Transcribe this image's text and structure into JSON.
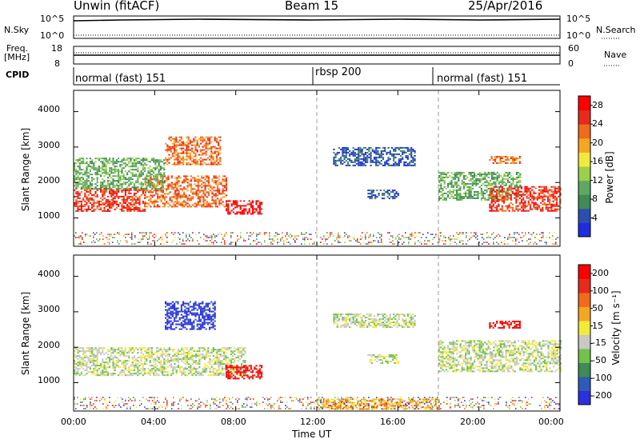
{
  "header": {
    "station": "Unwin (fitACF)",
    "beam": "Beam 15",
    "date": "25/Apr/2016"
  },
  "top_strips": {
    "nsky_label": "N.Sky",
    "nsky_ticks": [
      "10^5",
      "10^0"
    ],
    "nsearch_label": "N.Search",
    "nsearch_ticks": [
      "10^5",
      "10^0"
    ],
    "freq_label": "Freq.",
    "freq_unit": "[MHz]",
    "freq_ticks": [
      "18",
      "8"
    ],
    "nave_label": "Nave",
    "nave_ticks": [
      "60",
      "0"
    ],
    "cpid_label": "CPID"
  },
  "cpid_segments": [
    {
      "label": "normal (fast) 151",
      "start": 0,
      "end": 12
    },
    {
      "label": "rbsp 200",
      "start": 12,
      "end": 18
    },
    {
      "label": "normal (fast) 151",
      "start": 18,
      "end": 24
    }
  ],
  "colors": {
    "power_scale": [
      "#1f2de0",
      "#2b4fb0",
      "#3f8a55",
      "#5fa862",
      "#9bd04a",
      "#f2ea3a",
      "#f5a623",
      "#f26a1b",
      "#e82a1b",
      "#ff0000"
    ],
    "velocity_scale": [
      "#2a2fe0",
      "#2e5bb8",
      "#3f8a55",
      "#72c24a",
      "#c8c8c4",
      "#f2ea3a",
      "#f5a623",
      "#f26a1b",
      "#e82a1b",
      "#ff0000"
    ],
    "ground_scatter": "#c8c8c4"
  },
  "chart_data": [
    {
      "type": "heatmap",
      "name": "power",
      "ylabel": "Slant Range [km]",
      "yticks": [
        "1000",
        "2000",
        "3000",
        "4000"
      ],
      "ylim": [
        200,
        4600
      ],
      "colorbar_label": "Power [dB]",
      "colorbar_ticks": [
        "4",
        "8",
        "12",
        "16",
        "20",
        "24",
        "28"
      ],
      "blobs": [
        {
          "t0": 0.0,
          "t1": 3.5,
          "r0": 1200,
          "r1": 1850,
          "level": 8
        },
        {
          "t0": 3.5,
          "t1": 7.5,
          "r0": 1300,
          "r1": 2200,
          "level": 7
        },
        {
          "t0": 7.5,
          "t1": 9.3,
          "r0": 1100,
          "r1": 1500,
          "level": 9
        },
        {
          "t0": 4.5,
          "t1": 7.2,
          "r0": 2500,
          "r1": 3300,
          "level": 7
        },
        {
          "t0": 0.0,
          "t1": 4.5,
          "r0": 1800,
          "r1": 2700,
          "level": 3
        },
        {
          "t0": 12.8,
          "t1": 16.8,
          "r0": 2500,
          "r1": 3000,
          "level": 1
        },
        {
          "t0": 14.5,
          "t1": 16.0,
          "r0": 1550,
          "r1": 1800,
          "level": 1
        },
        {
          "t0": 18.0,
          "t1": 22.0,
          "r0": 1500,
          "r1": 2300,
          "level": 3
        },
        {
          "t0": 20.5,
          "t1": 24.0,
          "r0": 1200,
          "r1": 1900,
          "level": 8
        },
        {
          "t0": 20.5,
          "t1": 22.0,
          "r0": 2550,
          "r1": 2750,
          "level": 7
        }
      ]
    },
    {
      "type": "heatmap",
      "name": "velocity",
      "xlabel": "Time UT",
      "xticks": [
        "00:00",
        "04:00",
        "08:00",
        "12:00",
        "16:00",
        "20:00",
        "00:00"
      ],
      "xlim": [
        0,
        24
      ],
      "ylabel": "Slant Range [km]",
      "yticks": [
        "1000",
        "2000",
        "3000",
        "4000"
      ],
      "ylim": [
        200,
        4600
      ],
      "colorbar_label": "Velocity [m s⁻¹]",
      "colorbar_ticks": [
        "200",
        "100",
        "50",
        "15",
        "-15",
        "-50",
        "-100",
        "-200"
      ],
      "blobs": [
        {
          "t0": 0.0,
          "t1": 8.5,
          "r0": 1200,
          "r1": 2000,
          "level": 4
        },
        {
          "t0": 4.5,
          "t1": 7.0,
          "r0": 2500,
          "r1": 3300,
          "level": 0
        },
        {
          "t0": 7.5,
          "t1": 9.3,
          "r0": 1100,
          "r1": 1500,
          "level": 9
        },
        {
          "t0": 12.8,
          "t1": 16.8,
          "r0": 2550,
          "r1": 2950,
          "level": 4
        },
        {
          "t0": 14.5,
          "t1": 16.0,
          "r0": 1550,
          "r1": 1800,
          "level": 4
        },
        {
          "t0": 18.0,
          "t1": 24.0,
          "r0": 1300,
          "r1": 2200,
          "level": 4
        },
        {
          "t0": 20.5,
          "t1": 22.0,
          "r0": 2550,
          "r1": 2750,
          "level": 9
        },
        {
          "t0": 12.0,
          "t1": 18.0,
          "r0": 250,
          "r1": 550,
          "level": 6
        }
      ]
    }
  ]
}
